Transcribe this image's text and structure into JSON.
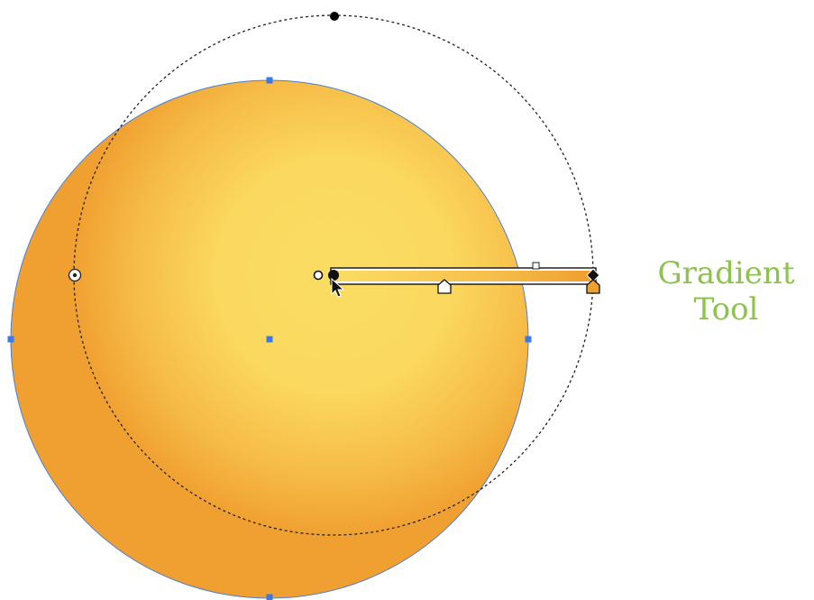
{
  "caption": {
    "line1": "Gradient",
    "line2": "Tool"
  },
  "colors": {
    "caption": "#8cc34b",
    "gradient_center": "#fbdd64",
    "gradient_edge": "#f0a030",
    "selection_outline": "#4a7fd8",
    "handle_blue": "#3a7ae8",
    "dash": "#222222"
  },
  "icons": [
    "arrow-cursor-icon",
    "radial-focus-point-icon",
    "gradient-center-handle-icon",
    "gradient-stop-icon",
    "midpoint-diamond-icon"
  ]
}
